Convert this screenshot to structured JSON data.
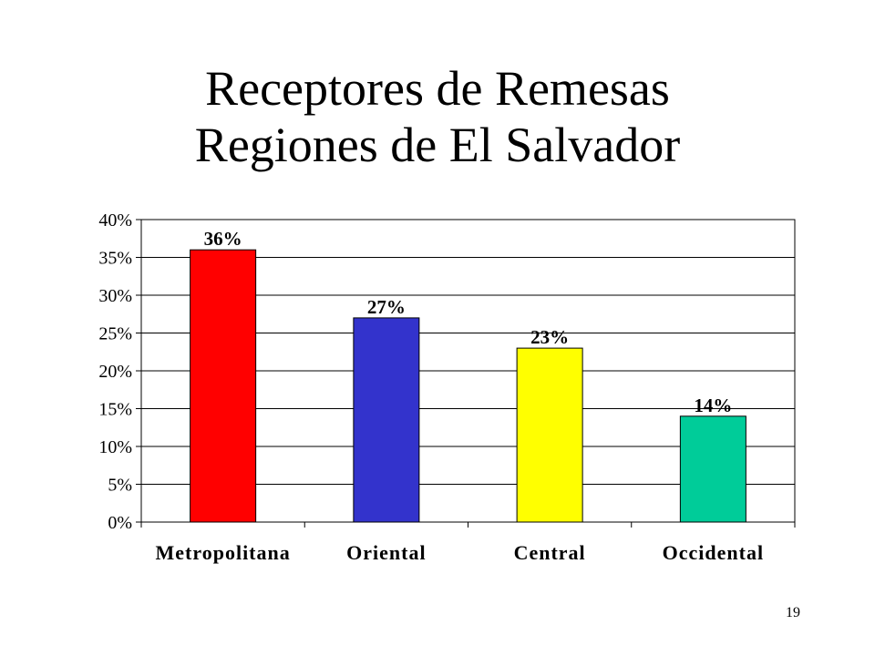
{
  "slide": {
    "title_line1": "Receptores de Remesas",
    "title_line2": "Regiones de El Salvador",
    "page_number": "19"
  },
  "chart_data": {
    "type": "bar",
    "categories": [
      "Metropolitana",
      "Oriental",
      "Central",
      "Occidental"
    ],
    "values": [
      36,
      27,
      23,
      14
    ],
    "data_labels": [
      "36%",
      "27%",
      "23%",
      "14%"
    ],
    "colors": [
      "#ff0000",
      "#3333cc",
      "#ffff00",
      "#00cc99"
    ],
    "y_ticks": [
      0,
      5,
      10,
      15,
      20,
      25,
      30,
      35,
      40
    ],
    "y_tick_labels": [
      "0%",
      "5%",
      "10%",
      "15%",
      "20%",
      "25%",
      "30%",
      "35%",
      "40%"
    ],
    "ylim": [
      0,
      40
    ],
    "grid": true,
    "legend": "none",
    "title": "",
    "xlabel": "",
    "ylabel": ""
  }
}
